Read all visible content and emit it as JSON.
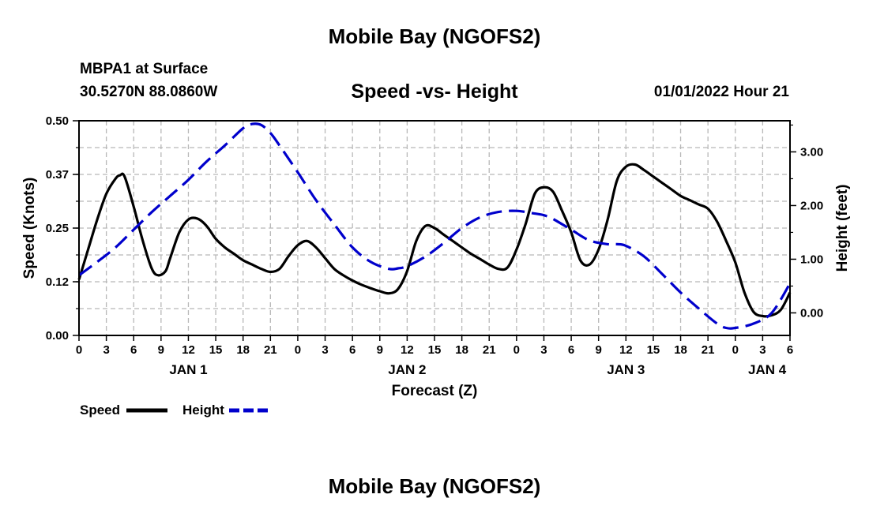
{
  "header": {
    "title": "Mobile Bay (NGOFS2)",
    "station": "MBPA1 at Surface",
    "coords": "30.5270N  88.0860W",
    "subtitle": "Speed -vs- Height",
    "datetime": "01/01/2022 Hour 21",
    "footer_title": "Mobile Bay (NGOFS2)"
  },
  "legend": {
    "speed_label": "Speed",
    "height_label": "Height",
    "speed_color": "#000000",
    "height_color": "#0000cc"
  },
  "chart_data": {
    "type": "line",
    "xlabel": "Forecast (Z)",
    "ylabel_left": "Speed (Knots)",
    "ylabel_right": "Height (feet)",
    "x_range_hours": [
      0,
      78
    ],
    "y_left_range": [
      0,
      0.5
    ],
    "y_right_range": [
      -0.42,
      3.58
    ],
    "grid": true,
    "legend_position": "bottom-left",
    "x_tick_labels": [
      "0",
      "3",
      "6",
      "9",
      "12",
      "15",
      "18",
      "21",
      "0",
      "3",
      "6",
      "9",
      "12",
      "15",
      "18",
      "21",
      "0",
      "3",
      "6",
      "9",
      "12",
      "15",
      "18",
      "21",
      "0",
      "3",
      "6"
    ],
    "x_tick_hours": [
      0,
      3,
      6,
      9,
      12,
      15,
      18,
      21,
      24,
      27,
      30,
      33,
      36,
      39,
      42,
      45,
      48,
      51,
      54,
      57,
      60,
      63,
      66,
      69,
      72,
      75,
      78
    ],
    "date_labels": [
      {
        "label": "JAN 1",
        "hour": 12
      },
      {
        "label": "JAN 2",
        "hour": 36
      },
      {
        "label": "JAN 3",
        "hour": 60
      },
      {
        "label": "JAN 4",
        "hour": 75.5
      }
    ],
    "y_left_ticks": [
      {
        "label": "0.00",
        "value": 0.0
      },
      {
        "label": "0.12",
        "value": 0.125
      },
      {
        "label": "0.25",
        "value": 0.25
      },
      {
        "label": "0.37",
        "value": 0.375
      },
      {
        "label": "0.50",
        "value": 0.5
      }
    ],
    "y_right_ticks": [
      {
        "label": "0.00",
        "value": 0.0
      },
      {
        "label": "1.00",
        "value": 1.0
      },
      {
        "label": "2.00",
        "value": 2.0
      },
      {
        "label": "3.00",
        "value": 3.0
      }
    ],
    "series": [
      {
        "name": "Speed",
        "axis": "left",
        "x": [
          0,
          1,
          2,
          3,
          4,
          4.5,
          5,
          6,
          7,
          8,
          8.7,
          9.5,
          10,
          11,
          12,
          13,
          14,
          15,
          16,
          17,
          18,
          19,
          20,
          21,
          22,
          23,
          24,
          25,
          26,
          27,
          28,
          29,
          30,
          31,
          32,
          33,
          34,
          35,
          36,
          37,
          38,
          39,
          40,
          41,
          42,
          43,
          44,
          45,
          46,
          47,
          48,
          49,
          50,
          51,
          52,
          53,
          54,
          55,
          56,
          57,
          58,
          59,
          60,
          61,
          62,
          63,
          64,
          65,
          66,
          67,
          68,
          69,
          70,
          71,
          72,
          73,
          74,
          75,
          76,
          77,
          78
        ],
        "values": [
          0.13,
          0.2,
          0.27,
          0.33,
          0.365,
          0.373,
          0.37,
          0.3,
          0.22,
          0.155,
          0.14,
          0.15,
          0.18,
          0.24,
          0.27,
          0.272,
          0.255,
          0.225,
          0.205,
          0.19,
          0.175,
          0.165,
          0.155,
          0.148,
          0.155,
          0.185,
          0.21,
          0.22,
          0.205,
          0.18,
          0.155,
          0.14,
          0.128,
          0.118,
          0.11,
          0.103,
          0.098,
          0.108,
          0.15,
          0.22,
          0.255,
          0.25,
          0.235,
          0.22,
          0.205,
          0.19,
          0.178,
          0.165,
          0.155,
          0.158,
          0.2,
          0.26,
          0.33,
          0.345,
          0.335,
          0.29,
          0.24,
          0.175,
          0.165,
          0.2,
          0.27,
          0.36,
          0.393,
          0.398,
          0.385,
          0.37,
          0.355,
          0.34,
          0.325,
          0.315,
          0.305,
          0.295,
          0.265,
          0.22,
          0.17,
          0.1,
          0.055,
          0.045,
          0.047,
          0.06,
          0.1
        ]
      },
      {
        "name": "Height",
        "axis": "right",
        "x": [
          0,
          2,
          4,
          6,
          8,
          10,
          12,
          14,
          16,
          18,
          19,
          20,
          21,
          22,
          24,
          26,
          28,
          30,
          32,
          34,
          35,
          36,
          38,
          40,
          42,
          44,
          46,
          48,
          50,
          51,
          52,
          54,
          56,
          58,
          59,
          60,
          62,
          64,
          66,
          68,
          70,
          71,
          72,
          74,
          76,
          78
        ],
        "values": [
          0.7,
          0.95,
          1.22,
          1.55,
          1.88,
          2.18,
          2.48,
          2.82,
          3.12,
          3.44,
          3.52,
          3.5,
          3.35,
          3.12,
          2.62,
          2.1,
          1.65,
          1.22,
          0.95,
          0.82,
          0.83,
          0.87,
          1.05,
          1.3,
          1.58,
          1.78,
          1.88,
          1.9,
          1.85,
          1.82,
          1.75,
          1.55,
          1.35,
          1.28,
          1.28,
          1.25,
          1.05,
          0.72,
          0.38,
          0.08,
          -0.2,
          -0.28,
          -0.28,
          -0.2,
          0.0,
          0.55
        ]
      }
    ]
  }
}
